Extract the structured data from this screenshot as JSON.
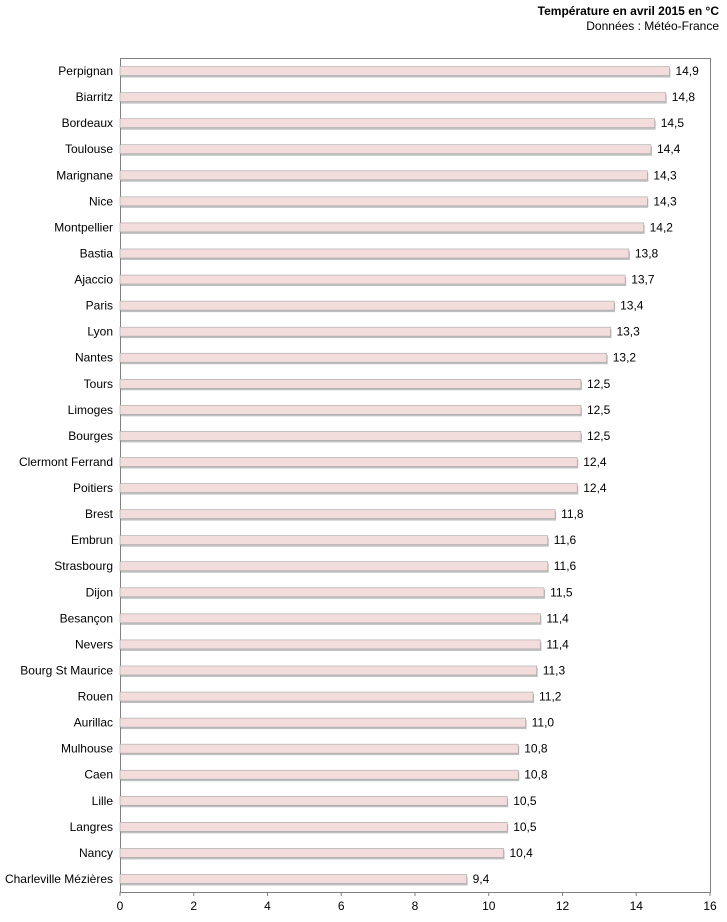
{
  "chart_data": {
    "type": "bar",
    "orientation": "horizontal",
    "title": "Température en avril 2015 en °C",
    "subtitle": "Données : Météo-France",
    "categories": [
      "Perpignan",
      "Biarritz",
      "Bordeaux",
      "Toulouse",
      "Marignane",
      "Nice",
      "Montpellier",
      "Bastia",
      "Ajaccio",
      "Paris",
      "Lyon",
      "Nantes",
      "Tours",
      "Limoges",
      "Bourges",
      "Clermont Ferrand",
      "Poitiers",
      "Brest",
      "Embrun",
      "Strasbourg",
      "Dijon",
      "Besançon",
      "Nevers",
      "Bourg St Maurice",
      "Rouen",
      "Aurillac",
      "Mulhouse",
      "Caen",
      "Lille",
      "Langres",
      "Nancy",
      "Charleville Mézières"
    ],
    "values": [
      14.9,
      14.8,
      14.5,
      14.4,
      14.3,
      14.3,
      14.2,
      13.8,
      13.7,
      13.4,
      13.3,
      13.2,
      12.5,
      12.5,
      12.5,
      12.4,
      12.4,
      11.8,
      11.6,
      11.6,
      11.5,
      11.4,
      11.4,
      11.3,
      11.2,
      11.0,
      10.8,
      10.8,
      10.5,
      10.5,
      10.4,
      9.4
    ],
    "value_labels": [
      "14,9",
      "14,8",
      "14,5",
      "14,4",
      "14,3",
      "14,3",
      "14,2",
      "13,8",
      "13,7",
      "13,4",
      "13,3",
      "13,2",
      "12,5",
      "12,5",
      "12,5",
      "12,4",
      "12,4",
      "11,8",
      "11,6",
      "11,6",
      "11,5",
      "11,4",
      "11,4",
      "11,3",
      "11,2",
      "11,0",
      "10,8",
      "10,8",
      "10,5",
      "10,5",
      "10,4",
      "9,4"
    ],
    "xlim": [
      0,
      16
    ],
    "xticks": [
      "0",
      "2",
      "4",
      "6",
      "8",
      "10",
      "12",
      "14",
      "16"
    ],
    "xlabel": "",
    "ylabel": "",
    "grid": false,
    "legend": "none",
    "bar_color": "#f2dcdc",
    "bar_edge_color": "#a6a6a6"
  }
}
